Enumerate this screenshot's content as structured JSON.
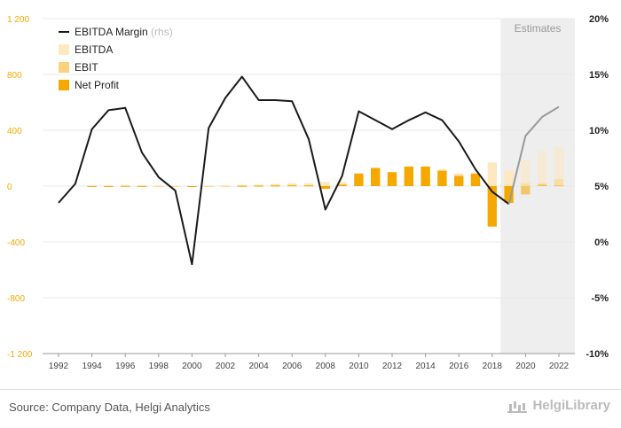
{
  "chart_data": {
    "type": "bar",
    "x": [
      1992,
      1993,
      1994,
      1995,
      1996,
      1997,
      1998,
      1999,
      2000,
      2001,
      2002,
      2003,
      2004,
      2005,
      2006,
      2007,
      2008,
      2009,
      2010,
      2011,
      2012,
      2013,
      2014,
      2015,
      2016,
      2017,
      2018,
      2019,
      2020,
      2021,
      2022
    ],
    "x_ticks": [
      "1992",
      "1994",
      "1996",
      "1998",
      "2000",
      "2002",
      "2004",
      "2006",
      "2008",
      "2010",
      "2012",
      "2014",
      "2016",
      "2018",
      "2020",
      "2022"
    ],
    "y_left_ticks": [
      "1 200",
      "800",
      "400",
      "0",
      "-400",
      "-800",
      "-1 200"
    ],
    "y_right_ticks": [
      "20%",
      "15%",
      "10%",
      "5%",
      "0%",
      "-5%",
      "-10%"
    ],
    "ylim_left": [
      -1200,
      1200
    ],
    "ylim_right": [
      -10,
      20
    ],
    "estimates_label": "Estimates",
    "estimates_from": 2019,
    "series": [
      {
        "name": "EBITDA",
        "color": "#fde8c0",
        "values": [
          0,
          0,
          2,
          3,
          4,
          3,
          2,
          2,
          -3,
          3,
          5,
          8,
          10,
          15,
          20,
          20,
          30,
          30,
          50,
          70,
          80,
          110,
          130,
          120,
          90,
          60,
          170,
          110,
          190,
          250,
          280
        ]
      },
      {
        "name": "EBIT",
        "color": "#fcd27e",
        "values": [
          0,
          0,
          1,
          2,
          2,
          1,
          1,
          1,
          -2,
          1,
          2,
          3,
          5,
          8,
          8,
          5,
          -15,
          10,
          20,
          30,
          40,
          40,
          60,
          80,
          80,
          40,
          -20,
          -10,
          20,
          20,
          50
        ]
      },
      {
        "name": "Net Profit",
        "color": "#f5a800",
        "values": [
          0,
          0,
          1,
          1,
          2,
          1,
          0,
          0,
          -4,
          0,
          0,
          2,
          3,
          4,
          5,
          5,
          -20,
          10,
          90,
          130,
          100,
          140,
          140,
          110,
          70,
          90,
          -290,
          -120,
          -60,
          10,
          5
        ]
      },
      {
        "name": "EBITDA Margin",
        "suffix": "(rhs)",
        "color": "#1a1a1a",
        "unit": "%",
        "values": [
          3.5,
          5.2,
          10.1,
          11.8,
          12.0,
          8.0,
          5.8,
          4.6,
          -2.0,
          10.2,
          12.9,
          14.8,
          12.7,
          12.7,
          12.6,
          9.2,
          2.9,
          5.9,
          11.7,
          10.9,
          10.1,
          10.9,
          11.6,
          10.9,
          9.0,
          6.5,
          4.5,
          3.4,
          9.5,
          11.2,
          12.1
        ]
      }
    ]
  },
  "footer": {
    "source": "Source: Company Data, Helgi Analytics",
    "brand": "HelgiLibrary"
  }
}
